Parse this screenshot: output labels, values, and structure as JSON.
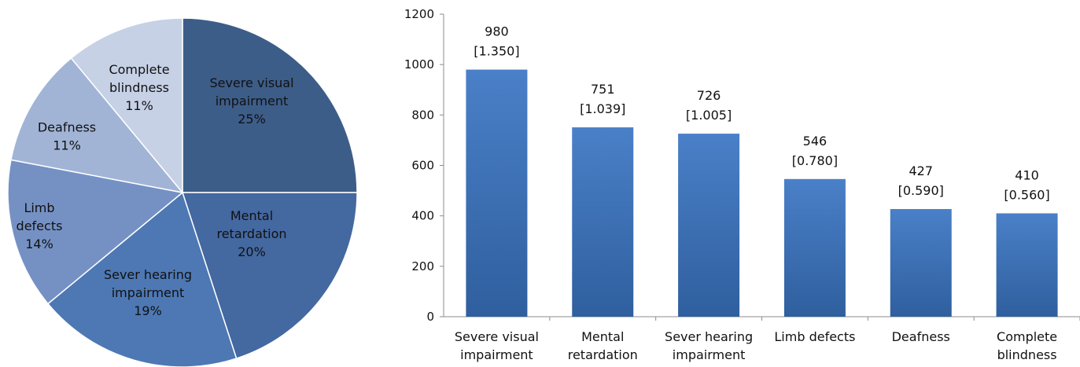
{
  "chart_data": [
    {
      "type": "pie",
      "slices": [
        {
          "label_lines": [
            "Severe visual",
            "impairment"
          ],
          "pct_text": "25%",
          "value": 25,
          "color": "#3d5d89"
        },
        {
          "label_lines": [
            "Mental",
            "retardation"
          ],
          "pct_text": "20%",
          "value": 20,
          "color": "#4468a0"
        },
        {
          "label_lines": [
            "Sever hearing",
            "impairment"
          ],
          "pct_text": "19%",
          "value": 19,
          "color": "#4d78b4"
        },
        {
          "label_lines": [
            "Limb",
            "defects"
          ],
          "pct_text": "14%",
          "value": 14,
          "color": "#7591c4"
        },
        {
          "label_lines": [
            "Deafness"
          ],
          "pct_text": "11%",
          "value": 11,
          "color": "#a1b4d6"
        },
        {
          "label_lines": [
            "Complete",
            "blindness"
          ],
          "pct_text": "11%",
          "value": 11,
          "color": "#c6d1e6"
        }
      ]
    },
    {
      "type": "bar",
      "categories": [
        [
          "Severe visual",
          "impairment"
        ],
        [
          "Mental",
          "retardation"
        ],
        [
          "Sever hearing",
          "impairment"
        ],
        [
          "Limb defects"
        ],
        [
          "Deafness"
        ],
        [
          "Complete",
          "blindness"
        ]
      ],
      "values": [
        980,
        751,
        726,
        546,
        427,
        410
      ],
      "data_labels": [
        [
          "980",
          "[1.350]"
        ],
        [
          "751",
          "[1.039]"
        ],
        [
          "726",
          "[1.005]"
        ],
        [
          "546",
          "[0.780]"
        ],
        [
          "427",
          "[0.590]"
        ],
        [
          "410",
          "[0.560]"
        ]
      ],
      "ylim": [
        0,
        1200
      ],
      "yticks": [
        "0",
        "200",
        "400",
        "600",
        "800",
        "1000",
        "1200"
      ],
      "bar_color": "#4a80c8",
      "grid": false
    }
  ]
}
